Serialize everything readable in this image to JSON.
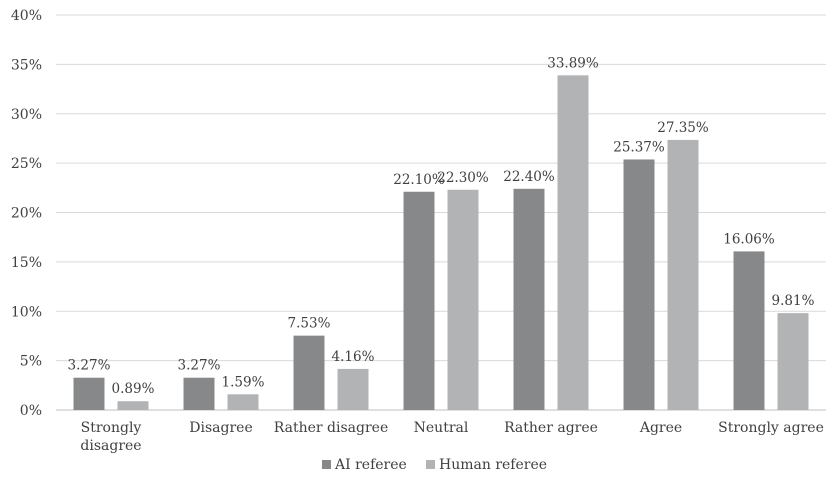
{
  "chart_data": {
    "type": "bar",
    "categories": [
      "Strongly disagree",
      "Disagree",
      "Rather disagree",
      "Neutral",
      "Rather agree",
      "Agree",
      "Strongly agree"
    ],
    "category_lines": [
      [
        "Strongly",
        "disagree"
      ],
      [
        "Disagree"
      ],
      [
        "Rather disagree"
      ],
      [
        "Neutral"
      ],
      [
        "Rather agree"
      ],
      [
        "Agree"
      ],
      [
        "Strongly agree"
      ]
    ],
    "series": [
      {
        "name": "AI referee",
        "color": "#87888a",
        "values": [
          3.27,
          3.27,
          7.53,
          22.1,
          22.4,
          25.37,
          16.06
        ],
        "labels": [
          "3.27%",
          "3.27%",
          "7.53%",
          "22.10%",
          "22.40%",
          "25.37%",
          "16.06%"
        ]
      },
      {
        "name": "Human referee",
        "color": "#b2b3b5",
        "values": [
          0.89,
          1.59,
          4.16,
          22.3,
          33.89,
          27.35,
          9.81
        ],
        "labels": [
          "0.89%",
          "1.59%",
          "4.16%",
          "22.30%",
          "33.89%",
          "27.35%",
          "9.81%"
        ]
      }
    ],
    "y_ticks": [
      "0%",
      "5%",
      "10%",
      "15%",
      "20%",
      "25%",
      "30%",
      "35%",
      "40%"
    ],
    "ylim": [
      0,
      40
    ],
    "grid": true,
    "legend_position": "bottom",
    "title": "",
    "xlabel": "",
    "ylabel": ""
  }
}
